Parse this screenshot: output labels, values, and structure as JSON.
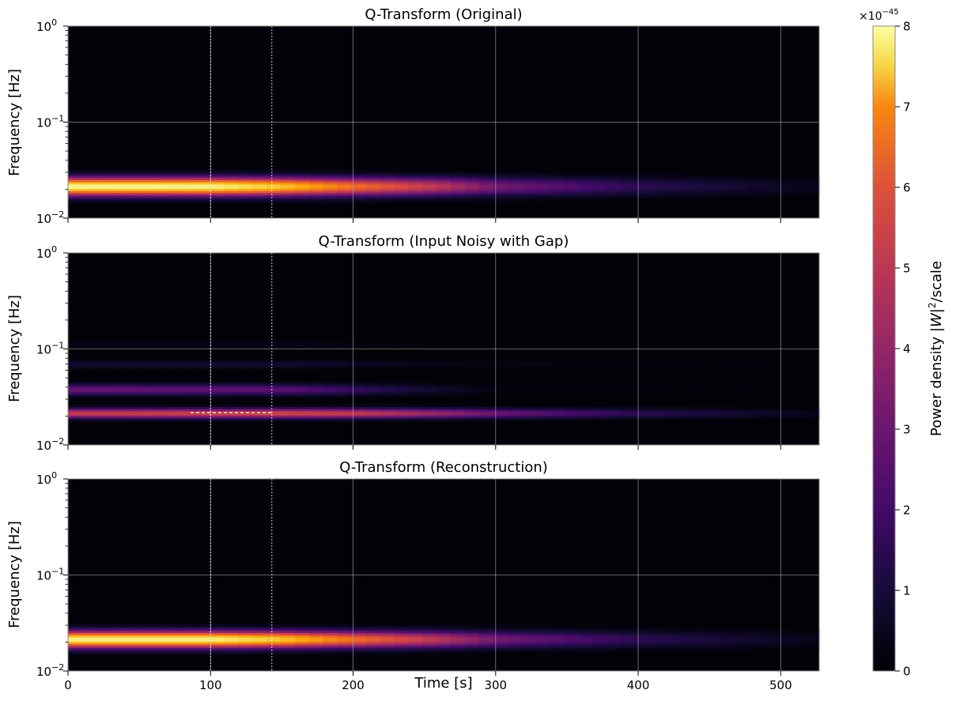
{
  "chart_data": {
    "type": "heatmap",
    "shared_x": true,
    "xlabel": "Time [s]",
    "xlim": [
      0,
      527
    ],
    "xticks": [
      0,
      100,
      200,
      300,
      400,
      500
    ],
    "xtick_labels": [
      "0",
      "100",
      "200",
      "300",
      "400",
      "500"
    ],
    "ylabel": "Frequency [Hz]",
    "yscale": "log",
    "ylim": [
      0.01,
      1
    ],
    "yticks": [
      0.01,
      0.1,
      1
    ],
    "ytick_labels": [
      {
        "base": "10",
        "exp": "−2"
      },
      {
        "base": "10",
        "exp": "−1"
      },
      {
        "base": "10",
        "exp": "0"
      }
    ],
    "grid": true,
    "vlines": [
      100,
      143
    ],
    "colormap": "inferno",
    "colorbar": {
      "label_main": "Power density ",
      "label_var": "|W|",
      "label_sup": "2",
      "label_tail": "/scale",
      "multiplier_base": "×10",
      "multiplier_exp": "−45",
      "vmin": 0,
      "vmax": 8.0,
      "ticks": [
        0,
        1,
        2,
        3,
        4,
        5,
        6,
        7,
        8
      ],
      "tick_labels": [
        "0",
        "1",
        "2",
        "3",
        "4",
        "5",
        "6",
        "7",
        "8"
      ]
    },
    "panels": [
      {
        "title": "Q-Transform (Original)",
        "bands": [
          {
            "freq": 0.0215,
            "width_dec": 0.065,
            "profile": [
              [
                0,
                7.9
              ],
              [
                100,
                7.8
              ],
              [
                150,
                7.0
              ],
              [
                200,
                5.5
              ],
              [
                260,
                4.0
              ],
              [
                300,
                2.6
              ],
              [
                400,
                1.2
              ],
              [
                527,
                0.3
              ]
            ]
          }
        ]
      },
      {
        "title": "Q-Transform (Input Noisy with Gap)",
        "gap": [
          86,
          143
        ],
        "bands": [
          {
            "freq": 0.0215,
            "width_dec": 0.035,
            "profile": [
              [
                0,
                4.2
              ],
              [
                100,
                4.4
              ],
              [
                150,
                4.5
              ],
              [
                200,
                4.2
              ],
              [
                260,
                3.3
              ],
              [
                300,
                2.4
              ],
              [
                400,
                1.2
              ],
              [
                527,
                0.3
              ]
            ]
          },
          {
            "freq": 0.038,
            "width_dec": 0.04,
            "profile": [
              [
                0,
                2.3
              ],
              [
                100,
                2.2
              ],
              [
                150,
                2.1
              ],
              [
                200,
                1.4
              ],
              [
                250,
                0.7
              ],
              [
                300,
                0.2
              ],
              [
                527,
                0.05
              ]
            ]
          },
          {
            "freq": 0.07,
            "width_dec": 0.03,
            "profile": [
              [
                0,
                0.7
              ],
              [
                150,
                0.7
              ],
              [
                250,
                0.3
              ],
              [
                527,
                0.05
              ]
            ]
          },
          {
            "freq": 0.11,
            "width_dec": 0.03,
            "profile": [
              [
                0,
                0.3
              ],
              [
                150,
                0.3
              ],
              [
                250,
                0.1
              ],
              [
                527,
                0.0
              ]
            ]
          }
        ]
      },
      {
        "title": "Q-Transform (Reconstruction)",
        "bands": [
          {
            "freq": 0.0215,
            "width_dec": 0.06,
            "profile": [
              [
                0,
                7.8
              ],
              [
                100,
                7.8
              ],
              [
                150,
                7.0
              ],
              [
                200,
                5.5
              ],
              [
                260,
                4.0
              ],
              [
                300,
                2.6
              ],
              [
                400,
                1.2
              ],
              [
                527,
                0.3
              ]
            ]
          }
        ]
      }
    ]
  }
}
